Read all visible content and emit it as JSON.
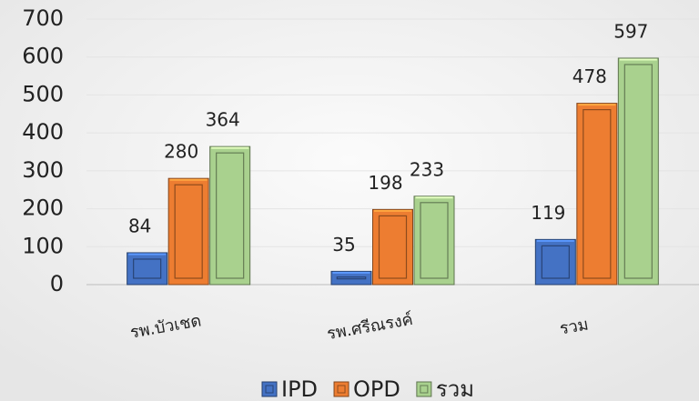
{
  "chart_data": {
    "type": "bar",
    "categories": [
      "รพ.บัวเชด",
      "รพ.ศรีณรงค์",
      "รวม"
    ],
    "series": [
      {
        "name": "IPD",
        "color": "#4472c4",
        "values": [
          84,
          35,
          119
        ]
      },
      {
        "name": "OPD",
        "color": "#ed7d31",
        "values": [
          280,
          198,
          478
        ]
      },
      {
        "name": "รวม",
        "color": "#a9d18e",
        "values": [
          364,
          233,
          597
        ]
      }
    ],
    "ylim": [
      0,
      700
    ],
    "yticks": [
      0,
      100,
      200,
      300,
      400,
      500,
      600,
      700
    ],
    "grid": true,
    "legend": "bottom"
  }
}
